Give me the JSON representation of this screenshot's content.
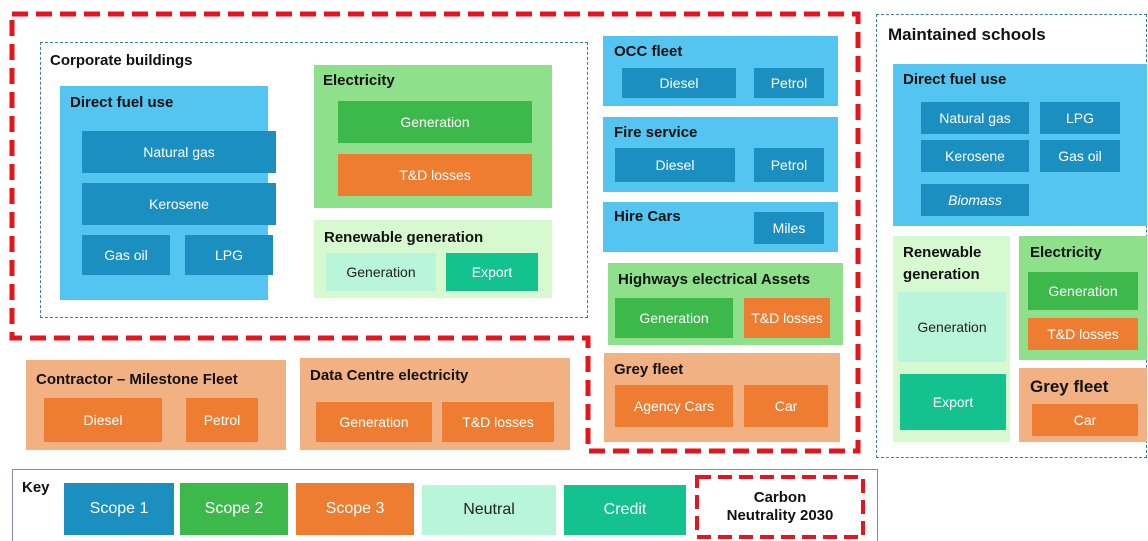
{
  "corporate_buildings": {
    "title": "Corporate buildings",
    "direct_fuel_use": {
      "title": "Direct fuel use",
      "items": [
        "Natural gas",
        "Kerosene",
        "Gas oil",
        "LPG"
      ]
    },
    "electricity": {
      "title": "Electricity",
      "items": [
        "Generation",
        "T&D losses"
      ]
    },
    "renewable_generation": {
      "title": "Renewable generation",
      "items": [
        "Generation",
        "Export"
      ]
    }
  },
  "occ_fleet": {
    "title": "OCC fleet",
    "items": [
      "Diesel",
      "Petrol"
    ]
  },
  "fire_service": {
    "title": "Fire service",
    "items": [
      "Diesel",
      "Petrol"
    ]
  },
  "hire_cars": {
    "title": "Hire Cars",
    "items": [
      "Miles"
    ]
  },
  "highways_electrical_assets": {
    "title": "Highways electrical Assets",
    "items": [
      "Generation",
      "T&D losses"
    ]
  },
  "grey_fleet": {
    "title": "Grey fleet",
    "items": [
      "Agency  Cars",
      "Car"
    ]
  },
  "contractor_fleet": {
    "title": "Contractor – Milestone Fleet",
    "items": [
      "Diesel",
      "Petrol"
    ]
  },
  "data_centre": {
    "title": "Data Centre electricity",
    "items": [
      "Generation",
      "T&D losses"
    ]
  },
  "maintained_schools": {
    "title": "Maintained schools",
    "direct_fuel_use": {
      "title": "Direct fuel use",
      "items": [
        "Natural gas",
        "LPG",
        "Kerosene",
        "Gas oil",
        "Biomass"
      ]
    },
    "renewable_generation": {
      "title": "Renewable generation",
      "items": [
        "Generation",
        "Export"
      ]
    },
    "electricity": {
      "title": "Electricity",
      "items": [
        "Generation",
        "T&D losses"
      ]
    },
    "grey_fleet": {
      "title": "Grey fleet",
      "items": [
        "Car"
      ]
    }
  },
  "key": {
    "title": "Key",
    "items": [
      "Scope 1",
      "Scope 2",
      "Scope 3",
      "Neutral",
      "Credit"
    ],
    "carbon_neutrality": "Carbon Neutrality 2030"
  }
}
